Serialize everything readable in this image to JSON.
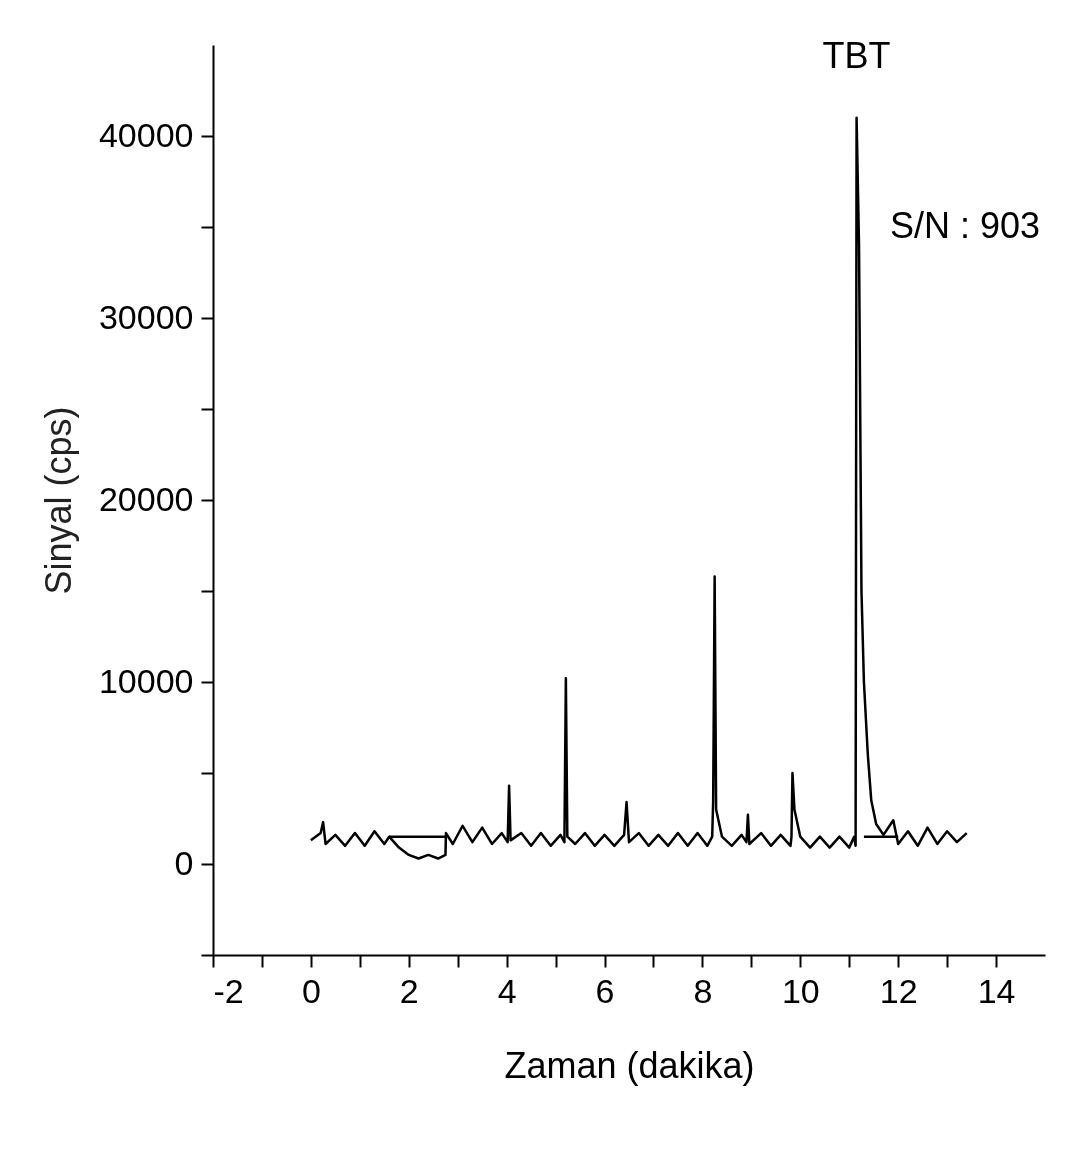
{
  "chart_data": {
    "type": "line",
    "xlabel": "Zaman (dakika)",
    "ylabel": "Sinyal (cps)",
    "xlim": [
      -2,
      15
    ],
    "ylim": [
      -5000,
      45000
    ],
    "xticks": [
      -2,
      {
        "value": -1,
        "label": null
      },
      0,
      {
        "value": 1,
        "label": null
      },
      2,
      {
        "value": 3,
        "label": null
      },
      4,
      {
        "value": 5,
        "label": null
      },
      6,
      {
        "value": 7,
        "label": null
      },
      8,
      {
        "value": 9,
        "label": null
      },
      10,
      {
        "value": 11,
        "label": null
      },
      12,
      {
        "value": 13,
        "label": null
      },
      14
    ],
    "yticks": [
      {
        "value": -5000,
        "label": null
      },
      0,
      {
        "value": 5000,
        "label": null
      },
      10000,
      {
        "value": 15000,
        "label": null
      },
      20000,
      {
        "value": 25000,
        "label": null
      },
      30000,
      {
        "value": 35000,
        "label": null
      },
      40000
    ],
    "grid": false,
    "marker": "none",
    "line_style": "solid",
    "series": [
      {
        "color": "#000000",
        "x": [
          0,
          0.2,
          0.25,
          0.3,
          0.5,
          0.7,
          0.9,
          1.1,
          1.3,
          1.5,
          1.6,
          1.8,
          2.0,
          2.2,
          2.4,
          2.6,
          2.75,
          2.76,
          2.9,
          3.1,
          3.3,
          3.5,
          3.7,
          3.9,
          4.02,
          4.05,
          4.08,
          4.3,
          4.5,
          4.7,
          4.9,
          5.1,
          5.18,
          5.21,
          5.24,
          5.4,
          5.6,
          5.8,
          6.0,
          6.2,
          6.4,
          6.45,
          6.5,
          6.7,
          6.9,
          7.1,
          7.3,
          7.5,
          7.7,
          7.9,
          8.1,
          8.2,
          8.22,
          8.25,
          8.28,
          8.4,
          8.6,
          8.8,
          8.9,
          8.93,
          8.96,
          9.2,
          9.4,
          9.6,
          9.8,
          9.82,
          9.84,
          9.88,
          10.0,
          10.2,
          10.4,
          10.6,
          10.8,
          11.0,
          11.1,
          11.13,
          11.15,
          11.2,
          11.25,
          11.3,
          11.38,
          11.45,
          11.55,
          11.7,
          11.9,
          12.0,
          12.2,
          12.4,
          12.6,
          12.8,
          13.0,
          13.2,
          13.4
        ],
        "values": [
          1300,
          1700,
          2300,
          1100,
          1600,
          1000,
          1700,
          1000,
          1800,
          1100,
          1500,
          900,
          500,
          300,
          500,
          300,
          500,
          1700,
          1100,
          2100,
          1200,
          2000,
          1100,
          1700,
          1200,
          4300,
          1300,
          1700,
          1000,
          1700,
          1000,
          1600,
          1200,
          10200,
          1500,
          1100,
          1700,
          1000,
          1600,
          1000,
          1600,
          3400,
          1200,
          1700,
          1000,
          1600,
          1000,
          1700,
          1000,
          1700,
          1000,
          1500,
          3500,
          15800,
          3000,
          1500,
          1000,
          1600,
          1200,
          2700,
          1100,
          1700,
          1000,
          1600,
          1000,
          1500,
          5000,
          3000,
          1500,
          900,
          1500,
          900,
          1500,
          900,
          1500,
          1000,
          41000,
          34000,
          15000,
          10000,
          6000,
          3500,
          2200,
          1600,
          2400,
          1100,
          1800,
          1000,
          2000,
          1100,
          1800,
          1200,
          1700
        ]
      },
      {
        "color": "#000000",
        "x": [
          1.6,
          2.76
        ],
        "values": [
          1500,
          1500
        ]
      },
      {
        "color": "#000000",
        "x": [
          11.3,
          12.0
        ],
        "values": [
          1500,
          1500
        ]
      }
    ],
    "annotations": [
      {
        "text": "TBT",
        "x": 11.15,
        "y": 41000
      },
      "S/N : 903"
    ]
  }
}
